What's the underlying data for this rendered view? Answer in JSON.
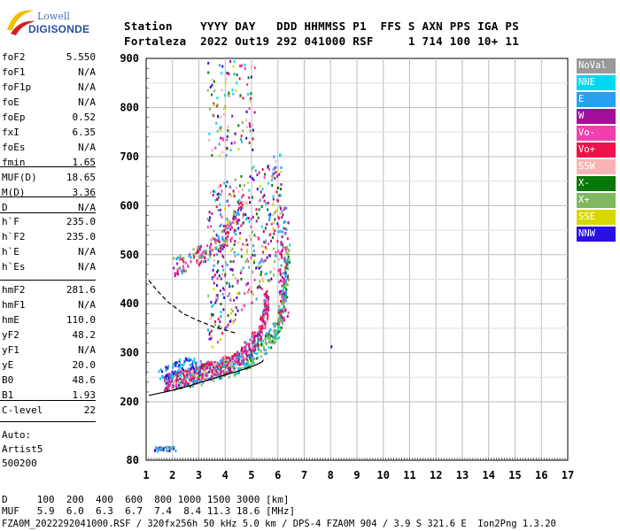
{
  "logo": {
    "line1": "Lowell",
    "line2": "DIGISONDE"
  },
  "header": {
    "row1": "Station    YYYY DAY   DDD HHMMSS P1  FFS S AXN PPS IGA PS",
    "row2": "Fortaleza  2022 Out19 292 041000 RSF     1 714 100 10+ 11"
  },
  "params": {
    "group1": [
      {
        "k": "foF2",
        "v": "5.550"
      },
      {
        "k": "foF1",
        "v": "N/A"
      },
      {
        "k": "foF1p",
        "v": "N/A"
      },
      {
        "k": "foE",
        "v": "N/A"
      },
      {
        "k": "foEp",
        "v": "0.52"
      },
      {
        "k": "fxI",
        "v": "6.35"
      },
      {
        "k": "foEs",
        "v": "N/A"
      },
      {
        "k": "fmin",
        "v": "1.65"
      }
    ],
    "group2": [
      {
        "k": "MUF(D)",
        "v": "18.65"
      },
      {
        "k": "M(D)",
        "v": "3.36"
      },
      {
        "k": "D",
        "v": "N/A"
      }
    ],
    "group3": [
      {
        "k": "h`F",
        "v": "235.0"
      },
      {
        "k": "h`F2",
        "v": "235.0"
      },
      {
        "k": "h`E",
        "v": "N/A"
      },
      {
        "k": "h`Es",
        "v": "N/A"
      }
    ],
    "group4": [
      {
        "k": "hmF2",
        "v": "281.6"
      },
      {
        "k": "hmF1",
        "v": "N/A"
      },
      {
        "k": "hmE",
        "v": "110.0"
      },
      {
        "k": "yF2",
        "v": "48.2"
      },
      {
        "k": "yF1",
        "v": "N/A"
      },
      {
        "k": "yE",
        "v": "20.0"
      },
      {
        "k": "B0",
        "v": "48.6"
      },
      {
        "k": "B1",
        "v": "1.93"
      }
    ],
    "group5": [
      {
        "k": "C-level",
        "v": "22"
      }
    ],
    "auto": [
      "Auto:",
      "Artist5",
      "500200"
    ]
  },
  "legend": [
    {
      "label": "NoVal",
      "color": "#999999"
    },
    {
      "label": "NNE",
      "color": "#00d8f0"
    },
    {
      "label": "E",
      "color": "#28a0f0"
    },
    {
      "label": "W",
      "color": "#a0109c"
    },
    {
      "label": "Vo-",
      "color": "#f040b0"
    },
    {
      "label": "Vo+",
      "color": "#f0104c"
    },
    {
      "label": "SSW",
      "color": "#f8b4b4"
    },
    {
      "label": "X-",
      "color": "#087808"
    },
    {
      "label": "X+",
      "color": "#80b860"
    },
    {
      "label": "SSE",
      "color": "#d8d800"
    },
    {
      "label": "NNW",
      "color": "#2810e0"
    }
  ],
  "chart_data": {
    "type": "scatter",
    "xlim": [
      1,
      17
    ],
    "ylim": [
      80,
      900
    ],
    "xticks": [
      "1",
      "2",
      "3",
      "4",
      "5",
      "6",
      "7",
      "8",
      "9",
      "10",
      "11",
      "12",
      "13",
      "14",
      "15",
      "16",
      "17"
    ],
    "yticks": [
      "80",
      "200",
      "300",
      "400",
      "500",
      "600",
      "700",
      "800",
      "900"
    ],
    "grid": true,
    "profile_solid": [
      [
        1.1,
        213
      ],
      [
        1.8,
        221
      ],
      [
        2.6,
        232
      ],
      [
        3.4,
        245
      ],
      [
        4.2,
        258
      ],
      [
        4.8,
        268
      ],
      [
        5.2,
        276
      ],
      [
        5.4,
        281.6
      ],
      [
        5.45,
        286
      ]
    ],
    "profile_dashed": [
      [
        1.1,
        448
      ],
      [
        1.4,
        428
      ],
      [
        1.8,
        405
      ],
      [
        2.4,
        380
      ],
      [
        3.0,
        365
      ],
      [
        3.6,
        352
      ],
      [
        4.1,
        345
      ],
      [
        4.4,
        340
      ]
    ],
    "trace_o": [
      [
        1.65,
        240
      ],
      [
        2.0,
        245
      ],
      [
        2.5,
        252
      ],
      [
        3.0,
        260
      ],
      [
        3.5,
        268
      ],
      [
        4.0,
        278
      ],
      [
        4.5,
        292
      ],
      [
        5.0,
        318
      ],
      [
        5.3,
        345
      ],
      [
        5.5,
        380
      ],
      [
        5.55,
        420
      ]
    ],
    "trace_x": [
      [
        2.0,
        244
      ],
      [
        2.5,
        250
      ],
      [
        3.0,
        256
      ],
      [
        3.5,
        263
      ],
      [
        4.0,
        270
      ],
      [
        4.5,
        280
      ],
      [
        5.0,
        295
      ],
      [
        5.5,
        318
      ],
      [
        5.9,
        345
      ],
      [
        6.1,
        380
      ],
      [
        6.25,
        430
      ],
      [
        6.35,
        520
      ]
    ],
    "isolated_point": [
      8.0,
      315
    ]
  },
  "footer": {
    "line1": "D     100  200  400  600  800 1000 1500 3000 [km]",
    "line2": "MUF   5.9  6.0  6.3  6.7  7.4  8.4 11.3 18.6 [MHz]",
    "line3": "FZA0M_2022292041000.RSF / 320fx256h 50 kHz 5.0 km / DPS-4 FZA0M 904 / 3.9 S 321.6 E  Ion2Png 1.3.20"
  }
}
